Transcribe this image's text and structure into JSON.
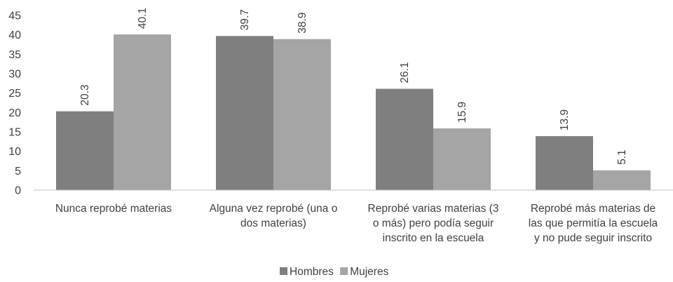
{
  "chart_data": {
    "type": "bar",
    "categories": [
      [
        "Nunca reprobé materias"
      ],
      [
        "Alguna vez reprobé (una o",
        "dos materias)"
      ],
      [
        "Reprobé varias materias (3",
        "o más) pero podía seguir",
        "inscrito en la escuela"
      ],
      [
        "Reprobé más materias de",
        "las que permitía la escuela",
        "y no pude seguir inscrito"
      ]
    ],
    "series": [
      {
        "name": "Hombres",
        "values": [
          20.3,
          39.7,
          26.1,
          13.9
        ],
        "color": "#7f7f7f"
      },
      {
        "name": "Mujeres",
        "values": [
          40.1,
          38.9,
          15.9,
          5.1
        ],
        "color": "#a5a5a5"
      }
    ],
    "ylim": [
      0,
      45
    ],
    "yticks": [
      0,
      5,
      10,
      15,
      20,
      25,
      30,
      35,
      40,
      45
    ],
    "grid": false,
    "legend": "bottom",
    "title": "",
    "xlabel": "",
    "ylabel": ""
  }
}
